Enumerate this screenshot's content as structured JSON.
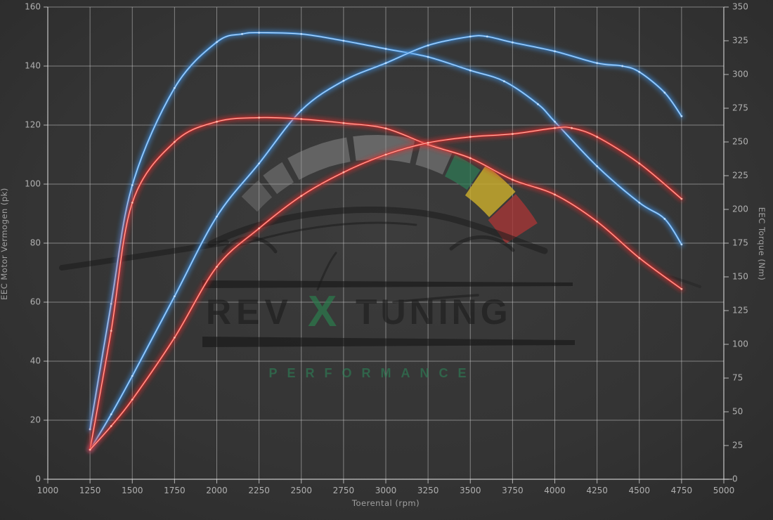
{
  "chart_data": {
    "type": "line",
    "xlabel": "Toerental (rpm)",
    "ylabel_left": "EEC Motor Vermogen (pk)",
    "ylabel_right": "EEC Torque (Nm)",
    "x_axis": {
      "min": 1000,
      "max": 5000,
      "ticks": [
        1000,
        1250,
        1500,
        1750,
        2000,
        2250,
        2500,
        2750,
        3000,
        3250,
        3500,
        3750,
        4000,
        4250,
        4500,
        4750,
        5000
      ]
    },
    "y_axis_left": {
      "min": 0,
      "max": 160,
      "ticks": [
        0,
        20,
        40,
        60,
        80,
        100,
        120,
        140,
        160
      ]
    },
    "y_axis_right": {
      "min": 0,
      "max": 350,
      "ticks": [
        0,
        25,
        50,
        75,
        100,
        125,
        150,
        175,
        200,
        225,
        250,
        275,
        300,
        325,
        350
      ]
    },
    "grid": true,
    "legend": "none",
    "series": [
      {
        "id": "blue-torque",
        "axis": "right",
        "color": "#3f8fdd",
        "core_color": "#c9e4ff",
        "points": [
          [
            1250,
            37
          ],
          [
            1375,
            130
          ],
          [
            1500,
            218
          ],
          [
            1750,
            290
          ],
          [
            2000,
            324
          ],
          [
            2150,
            330
          ],
          [
            2250,
            331
          ],
          [
            2500,
            330
          ],
          [
            2750,
            325
          ],
          [
            3000,
            319
          ],
          [
            3250,
            313
          ],
          [
            3500,
            303
          ],
          [
            3700,
            295
          ],
          [
            3900,
            278
          ],
          [
            4000,
            265
          ],
          [
            4250,
            232
          ],
          [
            4500,
            205
          ],
          [
            4650,
            193
          ],
          [
            4750,
            174
          ]
        ]
      },
      {
        "id": "blue-power",
        "axis": "left",
        "color": "#3f8fdd",
        "core_color": "#c9e4ff",
        "points": [
          [
            1250,
            10
          ],
          [
            1375,
            22
          ],
          [
            1500,
            35
          ],
          [
            1750,
            62
          ],
          [
            2000,
            89
          ],
          [
            2250,
            107
          ],
          [
            2500,
            125
          ],
          [
            2750,
            135
          ],
          [
            3000,
            141
          ],
          [
            3250,
            147
          ],
          [
            3500,
            150
          ],
          [
            3600,
            150
          ],
          [
            3750,
            148
          ],
          [
            4000,
            145
          ],
          [
            4250,
            141
          ],
          [
            4400,
            140
          ],
          [
            4500,
            138
          ],
          [
            4650,
            131
          ],
          [
            4750,
            123
          ]
        ]
      },
      {
        "id": "red-torque",
        "axis": "right",
        "color": "#dd2f2f",
        "core_color": "#ffc4b4",
        "points": [
          [
            1250,
            22
          ],
          [
            1375,
            110
          ],
          [
            1500,
            205
          ],
          [
            1750,
            250
          ],
          [
            2000,
            265
          ],
          [
            2250,
            268
          ],
          [
            2500,
            267
          ],
          [
            2750,
            264
          ],
          [
            3000,
            260
          ],
          [
            3250,
            248
          ],
          [
            3500,
            238
          ],
          [
            3750,
            222
          ],
          [
            4000,
            211
          ],
          [
            4250,
            191
          ],
          [
            4500,
            164
          ],
          [
            4750,
            141
          ]
        ]
      },
      {
        "id": "red-power",
        "axis": "left",
        "color": "#dd2f2f",
        "core_color": "#ffc4b4",
        "points": [
          [
            1250,
            10
          ],
          [
            1375,
            18
          ],
          [
            1500,
            27
          ],
          [
            1750,
            48
          ],
          [
            2000,
            72
          ],
          [
            2250,
            85
          ],
          [
            2500,
            96
          ],
          [
            2750,
            104
          ],
          [
            3000,
            110
          ],
          [
            3250,
            114
          ],
          [
            3500,
            116
          ],
          [
            3750,
            117
          ],
          [
            4000,
            119
          ],
          [
            4100,
            119
          ],
          [
            4250,
            116
          ],
          [
            4500,
            107
          ],
          [
            4750,
            95
          ]
        ]
      }
    ]
  },
  "watermark": {
    "brand_left": "REV",
    "brand_x": "X",
    "brand_right": "TUNING",
    "tagline": "PERFORMANCE",
    "colors": {
      "text_dark": "#1f1f1f",
      "x_green": "#2c7a4c",
      "tagline_green": "#2b8a5a",
      "gauge_gray": "#9b9b9b",
      "gauge_green": "#2e7a55",
      "gauge_yellow": "#c9ab2c",
      "gauge_red": "#a63636",
      "car_stroke": "#181818"
    }
  },
  "style": {
    "grid_color": "rgba(210,210,210,0.5)",
    "axis_color": "rgba(225,225,225,0.75)",
    "tick_label_color": "#b0b0b0"
  }
}
